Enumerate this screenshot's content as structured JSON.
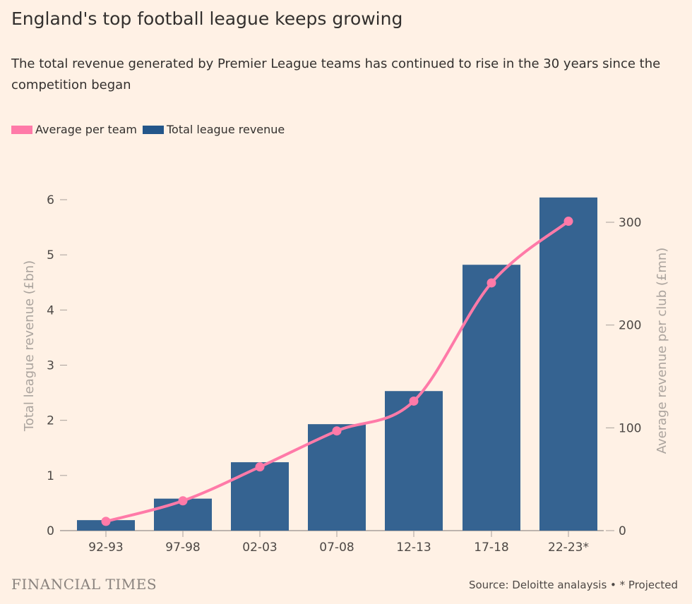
{
  "title": "England's top football league keeps growing",
  "subtitle": "The total revenue generated by Premier League teams has continued to rise in the 30 years since the competition began",
  "source": "Source: Deloitte analaysis • * Projected",
  "logo": "FINANCIAL TIMES",
  "colors": {
    "bar": "#356391",
    "line": "#ff7aa8",
    "background": "#fff1e5"
  },
  "chart_data": {
    "type": "bar",
    "categories": [
      "92-93",
      "97-98",
      "02-03",
      "07-08",
      "12-13",
      "17-18",
      "22-23*"
    ],
    "series": [
      {
        "name": "Total league revenue",
        "type": "bar",
        "axis": "left",
        "values": [
          0.19,
          0.58,
          1.24,
          1.93,
          2.53,
          4.82,
          6.04
        ]
      },
      {
        "name": "Average per team",
        "type": "line",
        "axis": "right",
        "values": [
          9,
          29,
          62,
          97,
          126,
          241,
          301
        ]
      }
    ],
    "left_axis": {
      "label": "Total league revenue (£bn)",
      "ticks": [
        "0",
        "1",
        "2",
        "3",
        "4",
        "5",
        "6"
      ],
      "range": [
        0,
        6
      ]
    },
    "right_axis": {
      "label": "Average revenue per club (£mn)",
      "ticks": [
        "0",
        "100",
        "200",
        "300"
      ],
      "range": [
        0,
        300
      ]
    },
    "legend": [
      "Average per team",
      "Total league revenue"
    ],
    "legend_position": "top-left"
  }
}
